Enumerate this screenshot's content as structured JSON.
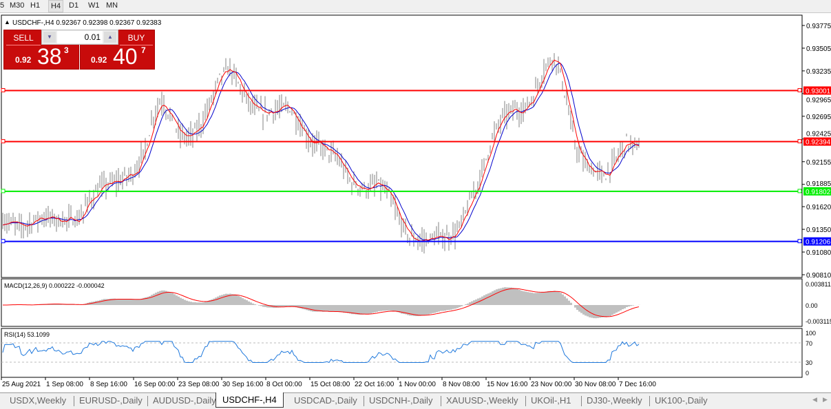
{
  "timeframes": [
    "5",
    "M30",
    "H1",
    "H4",
    "D1",
    "W1",
    "MN"
  ],
  "active_timeframe": "H4",
  "chart": {
    "header": "USDCHF-,H4  0.92367 0.92398 0.92367 0.92383",
    "trade_panel": {
      "sell_label": "SELL",
      "buy_label": "BUY",
      "lot": "0.01",
      "sell_prefix": "0.92",
      "sell_big": "38",
      "sell_small": "3",
      "buy_prefix": "0.92",
      "buy_big": "40",
      "buy_small": "7",
      "color": "#c80b0b"
    },
    "price_axis": [
      "0.93775",
      "0.93505",
      "0.93235",
      "0.92965",
      "0.92695",
      "0.92425",
      "0.92155",
      "0.91885",
      "0.91620",
      "0.91350",
      "0.91080",
      "0.90810"
    ],
    "hlines": [
      {
        "price": 0.93001,
        "label": "0.93001",
        "color": "#ff0000"
      },
      {
        "price": 0.92394,
        "label": "0.92394",
        "color": "#ff0000"
      },
      {
        "price": 0.91802,
        "label": "0.91802",
        "color": "#00ee00"
      },
      {
        "price": 0.91206,
        "label": "0.91206",
        "color": "#0000ff"
      }
    ],
    "close_path": [
      0.91457,
      0.91375,
      0.91498,
      0.91457,
      0.91474,
      0.91703,
      0.91867,
      0.91932,
      0.92031,
      0.92276,
      0.92768,
      0.9289,
      0.92727,
      0.92481,
      0.9244,
      0.92563,
      0.9285,
      0.93177,
      0.93259,
      0.93013,
      0.92809,
      0.92727,
      0.92768,
      0.92809,
      0.92604,
      0.92399,
      0.92317,
      0.92194,
      0.91908,
      0.91826,
      0.91883,
      0.91744,
      0.91457,
      0.91252,
      0.91212,
      0.91252,
      0.91252,
      0.91334,
      0.91621,
      0.92031,
      0.9244,
      0.92686,
      0.92768,
      0.92768,
      0.92931,
      0.93259,
      0.93423,
      0.93177,
      0.92768,
      0.92358,
      0.92112,
      0.92031,
      0.9199,
      0.92194,
      0.92399,
      0.92317,
      0.92358
    ],
    "ma_fast_color": "#ff0000",
    "ma_slow_color": "#0000cc",
    "bar_color": "#808080",
    "macd": {
      "label": "MACD(12,26,9) 0.000222 -0.000042",
      "axis": [
        "0.003811",
        "0.00",
        "-0.003115"
      ]
    },
    "rsi": {
      "label": "RSI(14) 53.1099",
      "axis": [
        "100",
        "70",
        "30",
        "0"
      ],
      "color": "#1e78dc"
    },
    "time_axis": [
      "25 Aug 2021",
      "1 Sep 08:00",
      "8 Sep 16:00",
      "16 Sep 00:00",
      "23 Sep 08:00",
      "30 Sep 16:00",
      "8 Oct 00:00",
      "15 Oct 08:00",
      "22 Oct 16:00",
      "1 Nov 00:00",
      "8 Nov 08:00",
      "15 Nov 16:00",
      "23 Nov 00:00",
      "30 Nov 08:00",
      "7 Dec 16:00"
    ]
  },
  "tabs": [
    "USDX,Weekly",
    "EURUSD-,Daily",
    "AUDUSD-,Daily",
    "USDCHF-,H4",
    "USDCAD-,Daily",
    "USDCNH-,Daily",
    "XAUUSD-,Weekly",
    "UKOil-,H1",
    "DJ30-,Weekly",
    "UK100-,Daily"
  ],
  "active_tab": "USDCHF-,H4"
}
